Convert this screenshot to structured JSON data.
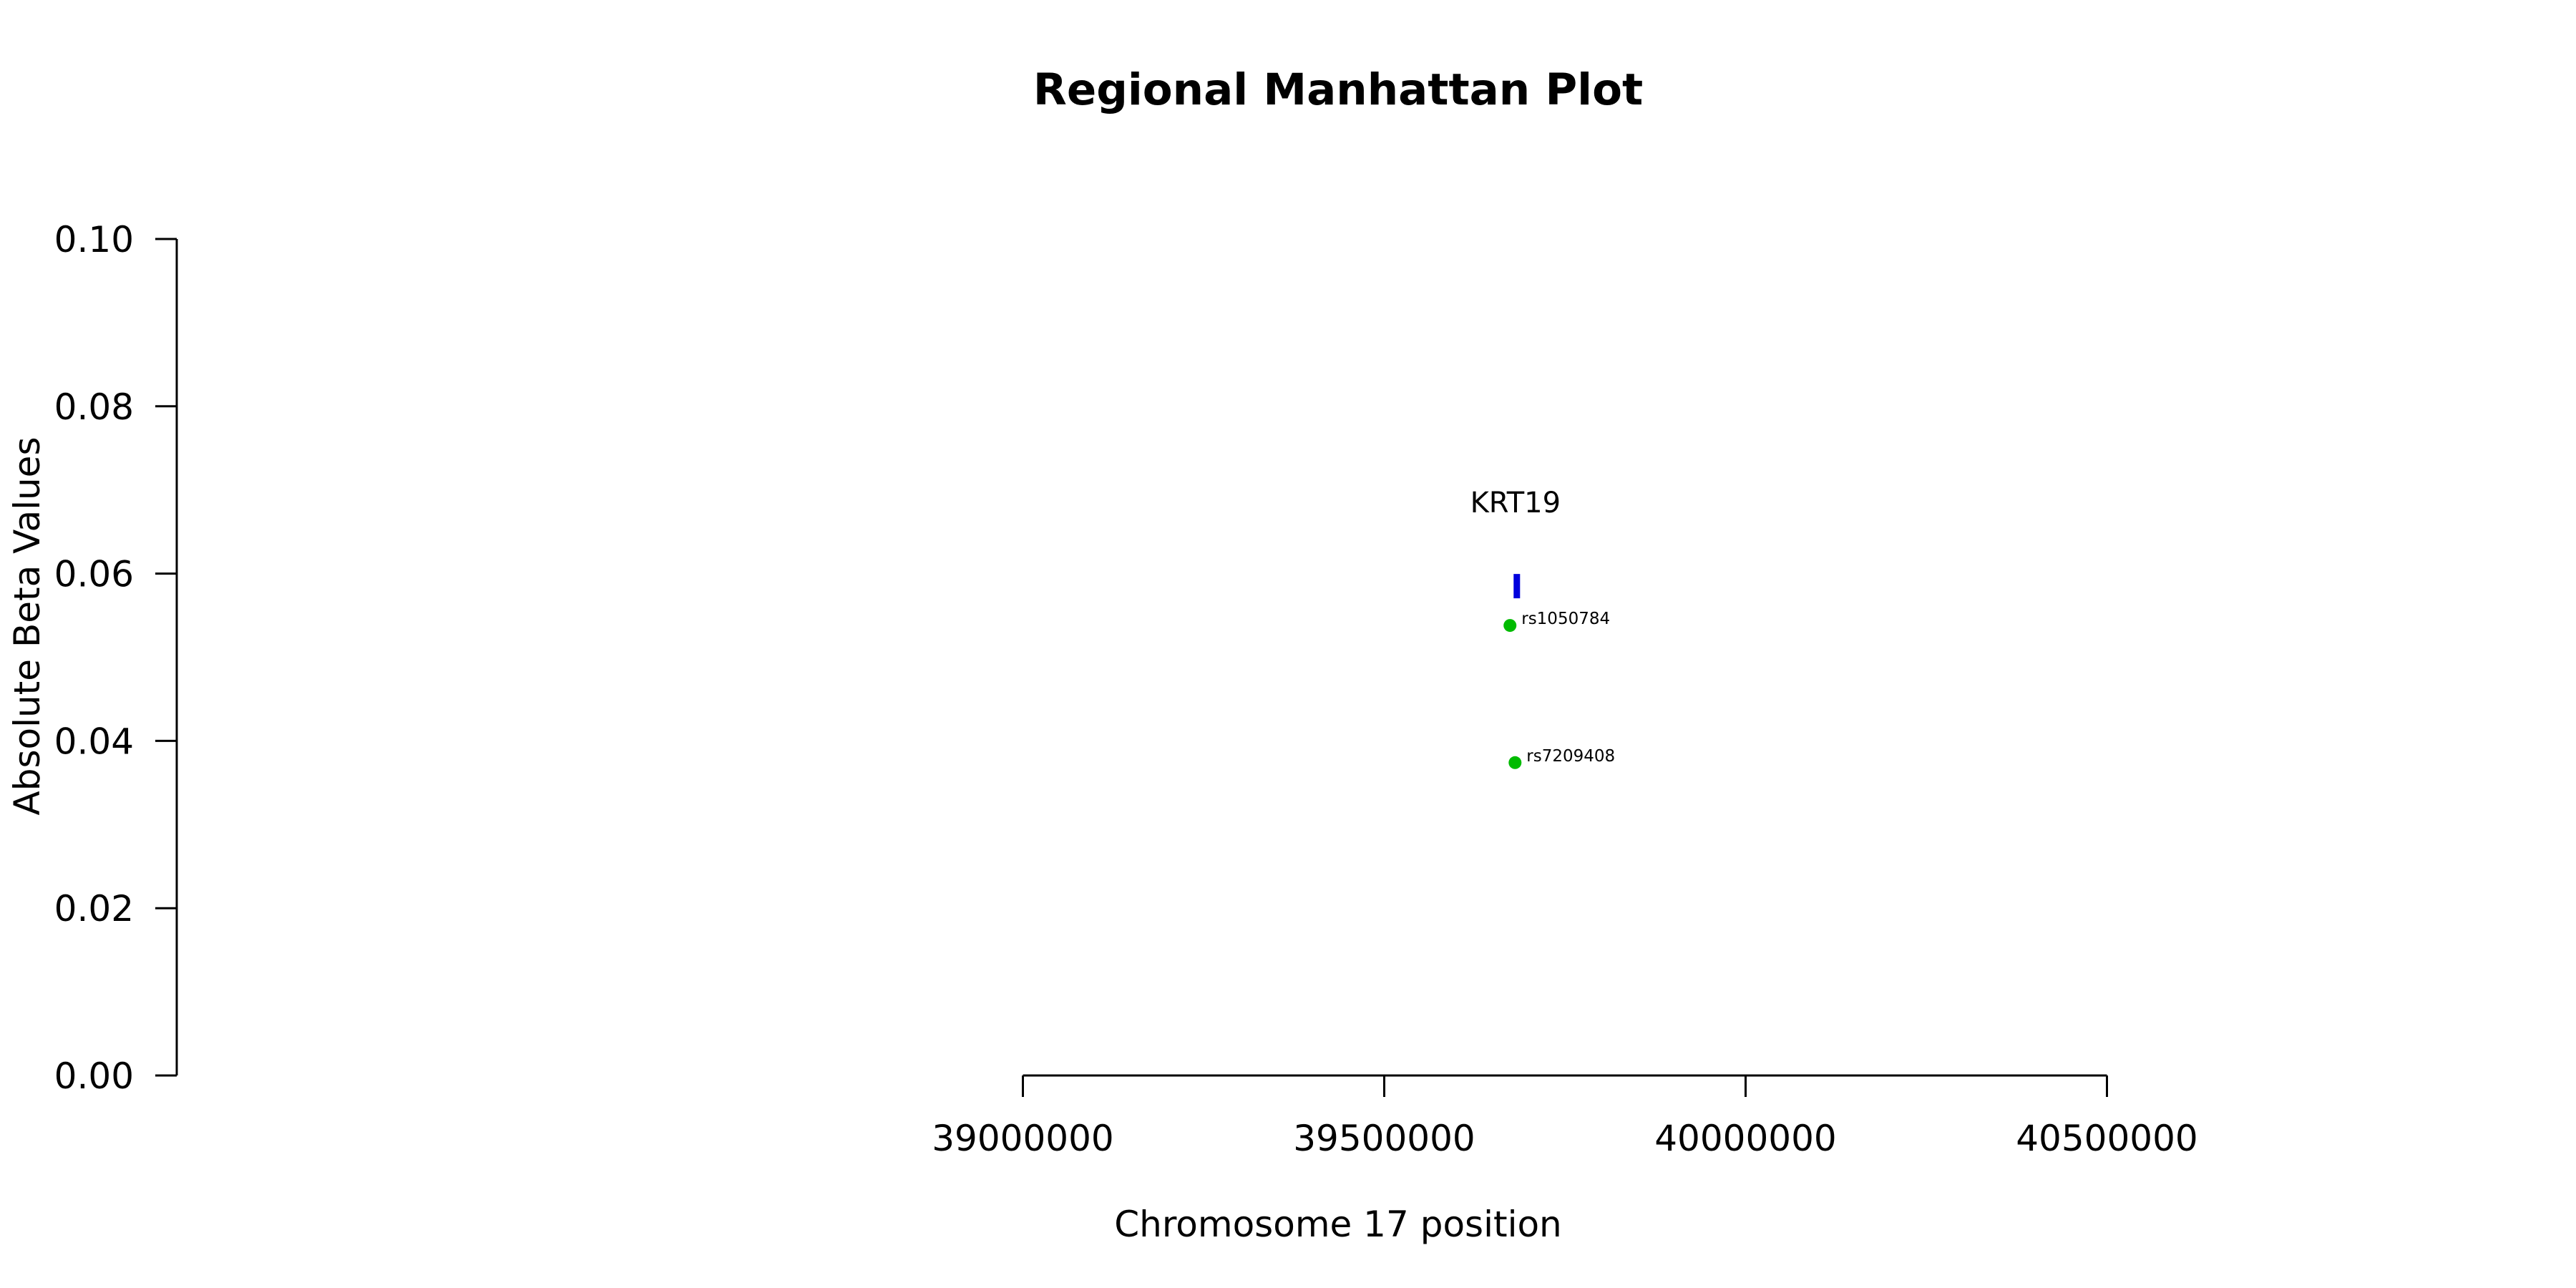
{
  "chart_data": {
    "type": "scatter",
    "title": "Regional Manhattan Plot",
    "xlabel": "Chromosome 17 position",
    "ylabel": "Absolute Beta Values",
    "xlim": [
      38350000,
      40750000
    ],
    "ylim": [
      0,
      0.1
    ],
    "x_ticks": [
      39000000,
      39500000,
      40000000,
      40500000
    ],
    "x_tick_labels": [
      "39000000",
      "39500000",
      "40000000",
      "40500000"
    ],
    "y_ticks": [
      0.0,
      0.02,
      0.04,
      0.06,
      0.08,
      0.1
    ],
    "y_tick_labels": [
      "0.00",
      "0.02",
      "0.04",
      "0.06",
      "0.08",
      "0.10"
    ],
    "grid": false,
    "legend": "none",
    "series": [
      {
        "color": "#00bb00",
        "points": [
          {
            "x": 39674000,
            "y": 0.0538,
            "label": "rs1050784"
          },
          {
            "x": 39681000,
            "y": 0.0374,
            "label": "rs7209408"
          }
        ]
      }
    ],
    "genes": [
      {
        "name": "KRT19",
        "start": 39679000,
        "end": 39684000,
        "y": 0.0585,
        "color": "#0000dd"
      }
    ]
  }
}
